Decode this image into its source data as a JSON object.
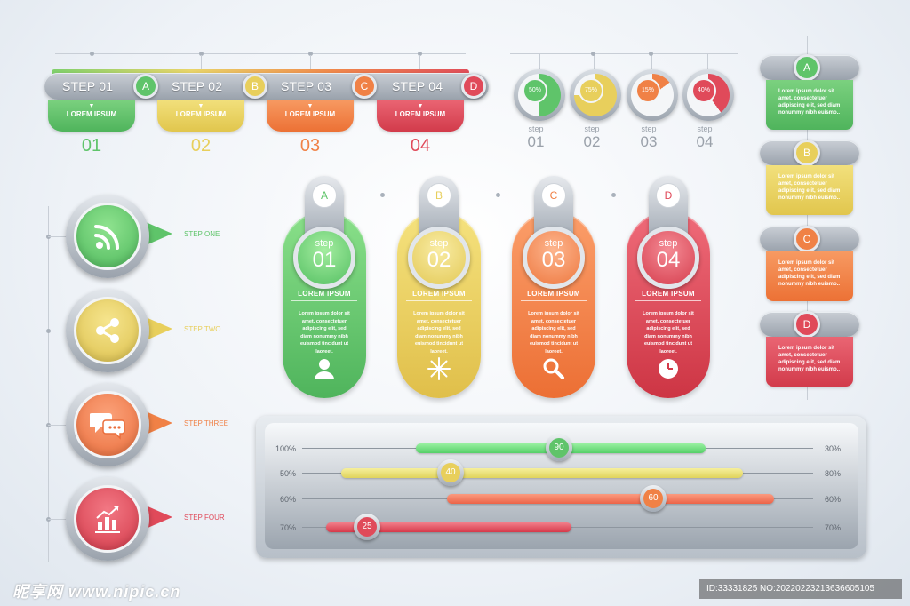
{
  "colors": {
    "green": "#5fc46a",
    "yellow": "#e8cf5c",
    "orange": "#f08146",
    "red": "#e04a5a"
  },
  "top_steps": [
    {
      "label": "STEP 01",
      "letter": "A",
      "tab": "LOREM IPSUM",
      "number": "01",
      "color": "#5fc46a"
    },
    {
      "label": "STEP 02",
      "letter": "B",
      "tab": "LOREM IPSUM",
      "number": "02",
      "color": "#e8cf5c"
    },
    {
      "label": "STEP 03",
      "letter": "C",
      "tab": "LOREM IPSUM",
      "number": "03",
      "color": "#f08146"
    },
    {
      "label": "STEP 04",
      "letter": "D",
      "tab": "LOREM IPSUM",
      "number": "04",
      "color": "#e04a5a"
    }
  ],
  "progress_circles": [
    {
      "percent_label": "50%",
      "percent": 50,
      "step": "step",
      "number": "01",
      "color": "#5fc46a"
    },
    {
      "percent_label": "75%",
      "percent": 75,
      "step": "step",
      "number": "02",
      "color": "#e8cf5c"
    },
    {
      "percent_label": "15%",
      "percent": 15,
      "step": "step",
      "number": "03",
      "color": "#f08146"
    },
    {
      "percent_label": "40%",
      "percent": 40,
      "step": "step",
      "number": "04",
      "color": "#e04a5a"
    }
  ],
  "right_cards": [
    {
      "letter": "A",
      "text": "Lorem ipsum dolor sit amet, consectetuer adipiscing elit, sed diam nonummy nibh euismo..",
      "color": "#5fc46a"
    },
    {
      "letter": "B",
      "text": "Lorem ipsum dolor sit amet, consectetuer adipiscing elit, sed diam nonummy nibh euismo..",
      "color": "#e8cf5c"
    },
    {
      "letter": "C",
      "text": "Lorem ipsum dolor sit amet, consectetuer adipiscing elit, sed diam nonummy nibh euismo..",
      "color": "#f08146"
    },
    {
      "letter": "D",
      "text": "Lorem ipsum dolor sit amet, consectetuer adipiscing elit, sed diam nonummy nibh euismo..",
      "color": "#e04a5a"
    }
  ],
  "left_icons": [
    {
      "label": "STEP ONE",
      "icon": "rss-icon",
      "color": "#5fc46a"
    },
    {
      "label": "STEP TWO",
      "icon": "share-icon",
      "color": "#e8cf5c"
    },
    {
      "label": "STEP THREE",
      "icon": "chat-bubbles-icon",
      "color": "#f08146"
    },
    {
      "label": "STEP FOUR",
      "icon": "bar-chart-icon",
      "color": "#e04a5a"
    }
  ],
  "pills": [
    {
      "letter": "A",
      "step": "step",
      "number": "01",
      "title": "LOREM IPSUM",
      "text": "Lorem ipsum dolor sit amet, consectetuer adipiscing elit, sed diam nonummy nibh euismod tincidunt ut laoreet.",
      "icon": "user-icon",
      "color": "#5fc46a"
    },
    {
      "letter": "B",
      "step": "step",
      "number": "02",
      "title": "LOREM IPSUM",
      "text": "Lorem ipsum dolor sit amet, consectetuer adipiscing elit, sed diam nonummy nibh euismod tincidunt ut laoreet.",
      "icon": "snowflake-icon",
      "color": "#e8cf5c"
    },
    {
      "letter": "C",
      "step": "step",
      "number": "03",
      "title": "LOREM IPSUM",
      "text": "Lorem ipsum dolor sit amet, consectetuer adipiscing elit, sed diam nonummy nibh euismod tincidunt ut laoreet.",
      "icon": "magnifier-icon",
      "color": "#f08146"
    },
    {
      "letter": "D",
      "step": "step",
      "number": "04",
      "title": "LOREM IPSUM",
      "text": "Lorem ipsum dolor sit amet, consectetuer adipiscing elit, sed diam nonummy nibh euismod tincidunt ut laoreet.",
      "icon": "clock-icon",
      "color": "#e04a5a"
    }
  ],
  "sliders": [
    {
      "left_label": "100%",
      "right_label": "30%",
      "knob": "90",
      "color": "#6fdc7e"
    },
    {
      "left_label": "50%",
      "right_label": "80%",
      "knob": "40",
      "color": "#ece27a"
    },
    {
      "left_label": "60%",
      "right_label": "60%",
      "knob": "60",
      "color": "#f37c5e"
    },
    {
      "left_label": "70%",
      "right_label": "70%",
      "knob": "25",
      "color": "#e2505f"
    }
  ],
  "watermark": {
    "site": "昵享网 www.nipic.cn",
    "id": "ID:33331825 NO:20220223213636605105"
  }
}
